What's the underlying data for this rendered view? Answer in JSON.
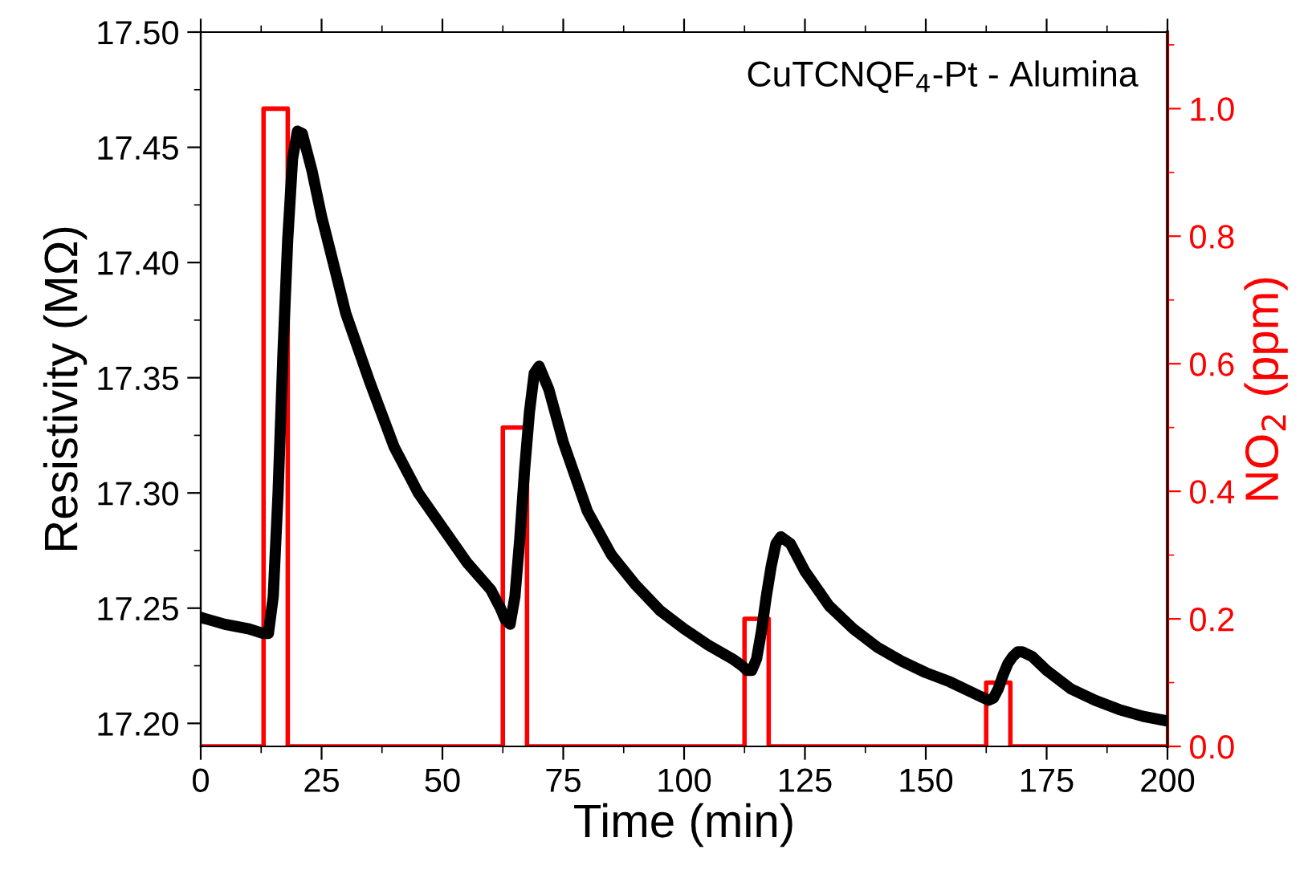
{
  "chart_data": {
    "type": "line",
    "xlabel": "Time (min)",
    "ylabel": "Resistivity (MΩ)",
    "y2label": "NO$_{2}$ (ppm)",
    "annotations": [
      "CuTCNQF$_{4}$-Pt - Alumina"
    ],
    "xlim": [
      0,
      200
    ],
    "xticks": [
      0,
      25,
      50,
      75,
      100,
      125,
      150,
      175,
      200
    ],
    "ylim": [
      17.19,
      17.5
    ],
    "yticks": [
      {
        "value": 17.2,
        "label": "17.20"
      },
      17.25,
      {
        "value": 17.3,
        "label": "17.30"
      },
      17.35,
      {
        "value": 17.4,
        "label": "17.40"
      },
      17.45,
      {
        "value": 17.5,
        "label": "17.50"
      }
    ],
    "y2lim": [
      0,
      1.12
    ],
    "y2ticks": [
      {
        "value": 0,
        "label": "0.0"
      },
      0.2,
      0.4,
      0.6,
      0.8,
      {
        "value": 1,
        "label": "1.0"
      }
    ],
    "grid": false,
    "legend": false,
    "line_style": "solid",
    "marker": "none",
    "series": [
      {
        "color": "#000000",
        "x": [
          0,
          5,
          10,
          13,
          14,
          15,
          16,
          17,
          18,
          19,
          20,
          21,
          23,
          25,
          28,
          30,
          33,
          35,
          40,
          45,
          50,
          55,
          60,
          62,
          63,
          64,
          65,
          66,
          67,
          68,
          69,
          70,
          72,
          75,
          80,
          85,
          90,
          95,
          100,
          105,
          110,
          112,
          113,
          114,
          115,
          116,
          117,
          118,
          119,
          120,
          122,
          125,
          130,
          135,
          140,
          145,
          150,
          155,
          160,
          162,
          163,
          164,
          165,
          166,
          167,
          168,
          169,
          170,
          172,
          175,
          180,
          185,
          190,
          195,
          200
        ],
        "values": [
          17.246,
          17.243,
          17.241,
          17.239,
          17.239,
          17.255,
          17.3,
          17.36,
          17.41,
          17.445,
          17.457,
          17.456,
          17.44,
          17.42,
          17.395,
          17.378,
          17.36,
          17.348,
          17.32,
          17.3,
          17.285,
          17.27,
          17.258,
          17.25,
          17.245,
          17.243,
          17.255,
          17.28,
          17.31,
          17.335,
          17.352,
          17.355,
          17.345,
          17.322,
          17.292,
          17.273,
          17.26,
          17.249,
          17.241,
          17.234,
          17.228,
          17.225,
          17.223,
          17.223,
          17.228,
          17.24,
          17.255,
          17.268,
          17.278,
          17.281,
          17.278,
          17.266,
          17.251,
          17.241,
          17.233,
          17.227,
          17.222,
          17.218,
          17.213,
          17.211,
          17.21,
          17.211,
          17.215,
          17.221,
          17.226,
          17.229,
          17.231,
          17.231,
          17.229,
          17.223,
          17.215,
          17.21,
          17.206,
          17.203,
          17.201
        ]
      },
      {
        "color": "#ff0000",
        "axis": "y2",
        "type": "step",
        "x": [
          0,
          13,
          13,
          18,
          18,
          62.5,
          62.5,
          67.5,
          67.5,
          112.5,
          112.5,
          117.5,
          117.5,
          162.5,
          162.5,
          167.5,
          167.5,
          200
        ],
        "values": [
          0,
          0,
          1.0,
          1.0,
          0,
          0,
          0.5,
          0.5,
          0,
          0,
          0.2,
          0.2,
          0,
          0,
          0.1,
          0.1,
          0,
          0
        ]
      }
    ]
  }
}
